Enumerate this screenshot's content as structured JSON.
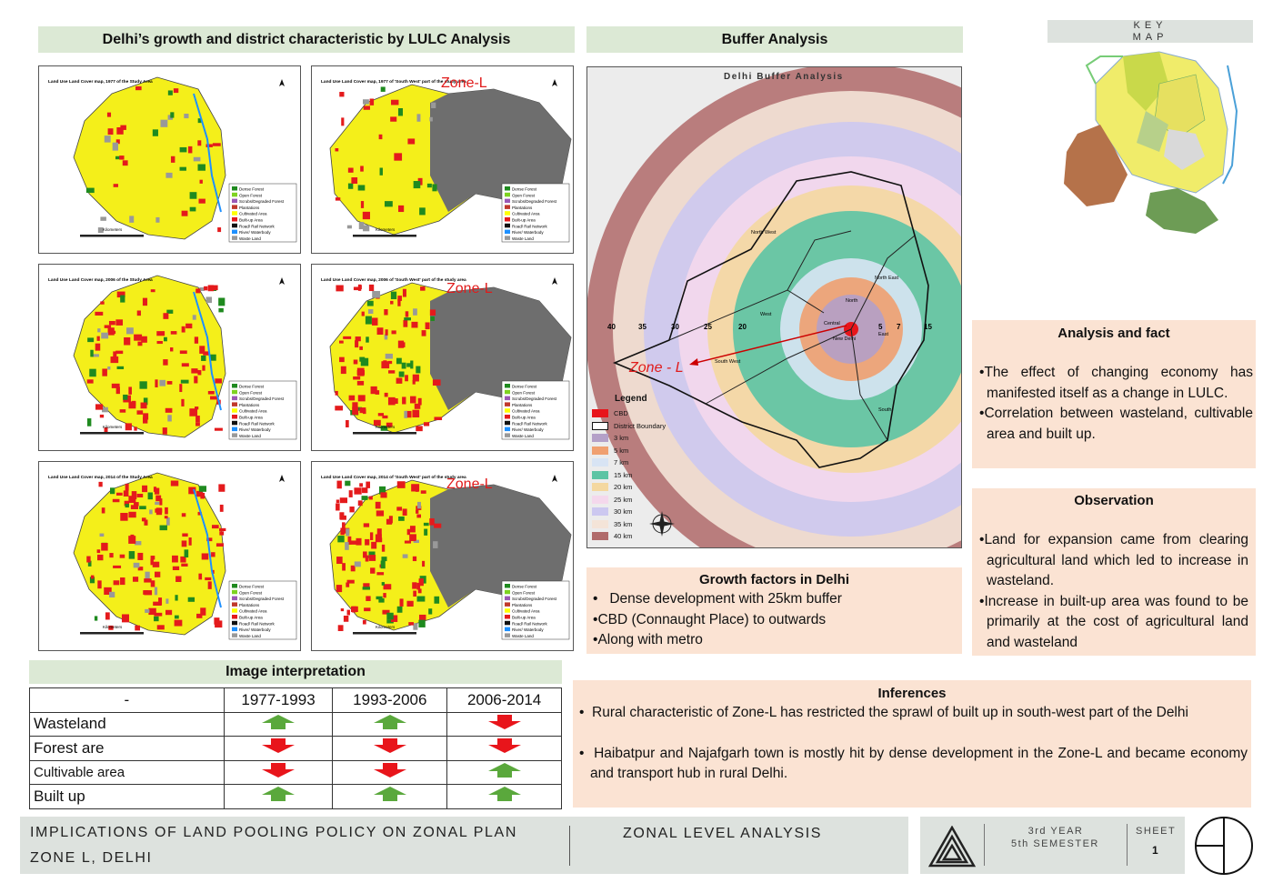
{
  "lulc": {
    "title": "Delhi’s growth and district characteristic by LULC Analysis",
    "maps": [
      {
        "title": "Land Use Land Cover map, 1977 of the Study Area"
      },
      {
        "title": "Land Use Land Cover map, 1977 of 'South West' part of the study area",
        "zone": "Zone-L"
      },
      {
        "title": "Land Use Land Cover map, 2006 of the Study Area"
      },
      {
        "title": "Land Use Land Cover map, 2006 of 'South West' part of the study area",
        "zone": "Zone-L"
      },
      {
        "title": "Land Use Land Cover map, 2014 of the Study Area"
      },
      {
        "title": "Land Use Land Cover map, 2014 of 'South West' part of the study area",
        "zone": "Zone-L"
      }
    ],
    "legend": [
      "Dense Forest",
      "Open Forest",
      "Scrubs/Degraded Forest",
      "Plantations",
      "Cultivated Area",
      "Built-up Area",
      "Road/ Rail Network",
      "River/ Waterbody",
      "Waste Land"
    ],
    "legend_colors": [
      "#1f8a1f",
      "#7ed321",
      "#9b59b6",
      "#c0392b",
      "#ffff00",
      "#e41a1c",
      "#111111",
      "#1e90ff",
      "#999999"
    ],
    "kilometers": "Kilometers"
  },
  "buffer": {
    "title": "Buffer Analysis",
    "map_title": "Delhi Buffer Analysis",
    "zone": "Zone - L",
    "legend_title": "Legend",
    "legend": [
      {
        "label": "CBD",
        "color": "#e8151b"
      },
      {
        "label": "District Boundary",
        "color": "#ffffff"
      },
      {
        "label": "3 km",
        "color": "#b4a0c8"
      },
      {
        "label": "5 km",
        "color": "#f0a070"
      },
      {
        "label": "7 km",
        "color": "#d8e4f4"
      },
      {
        "label": "15 km",
        "color": "#5cc4a4"
      },
      {
        "label": "20 km",
        "color": "#f4d8a0"
      },
      {
        "label": "25 km",
        "color": "#f4d8ec"
      },
      {
        "label": "30 km",
        "color": "#ccc8f0"
      },
      {
        "label": "35 km",
        "color": "#f4e4d8"
      },
      {
        "label": "40 km",
        "color": "#b06a6a"
      }
    ],
    "ring_labels": [
      "40",
      "35",
      "30",
      "25",
      "20",
      "15",
      "7",
      "5"
    ],
    "districts": [
      "North West",
      "North",
      "North East",
      "West",
      "Central",
      "East",
      "New Delhi",
      "South West",
      "South"
    ]
  },
  "keymap": {
    "title": "KEY MAP"
  },
  "analysis": {
    "title": "Analysis and fact",
    "points": [
      "The effect of changing economy has manifested itself as a change in LULC.",
      "Correlation between wasteland, cultivable area and built up."
    ]
  },
  "observation": {
    "title": "Observation",
    "points": [
      "Land for expansion came from clearing agricultural land which led to increase in wasteland.",
      "Increase in built-up area was found to be primarily at the cost of agricultural land and wasteland"
    ]
  },
  "growth": {
    "title": "Growth factors in Delhi",
    "points": [
      "Dense development with 25km buffer",
      "CBD (Connaught Place) to outwards",
      "Along with metro"
    ]
  },
  "inferences": {
    "title": "Inferences",
    "points": [
      "Rural characteristic of Zone-L has restricted the sprawl of built up in south-west part of the Delhi",
      "Haibatpur and Najafgarh town is mostly hit by dense development in the Zone-L and became economy and transport hub in rural Delhi."
    ]
  },
  "interpretation": {
    "title": "Image interpretation",
    "headers": [
      "-",
      "1977-1993",
      "1993-2006",
      "2006-2014"
    ],
    "rows": [
      {
        "label": "Wasteland",
        "trend": [
          "up",
          "up",
          "down"
        ]
      },
      {
        "label": "Forest are",
        "trend": [
          "down",
          "down",
          "down"
        ]
      },
      {
        "label": "Cultivable area",
        "trend": [
          "down",
          "down",
          "up"
        ]
      },
      {
        "label": "Built up",
        "trend": [
          "up",
          "up",
          "up"
        ]
      }
    ],
    "colors": {
      "up": "#5aa83c",
      "down": "#e8151b"
    }
  },
  "footer": {
    "title_line1": "IMPLICATIONS OF LAND POOLING POLICY ON ZONAL PLAN",
    "title_line2": "ZONE L, DELHI",
    "section": "ZONAL LEVEL ANALYSIS",
    "year": "3rd YEAR",
    "semester": "5th SEMESTER",
    "sheet_label": "SHEET",
    "sheet_no": "1"
  }
}
